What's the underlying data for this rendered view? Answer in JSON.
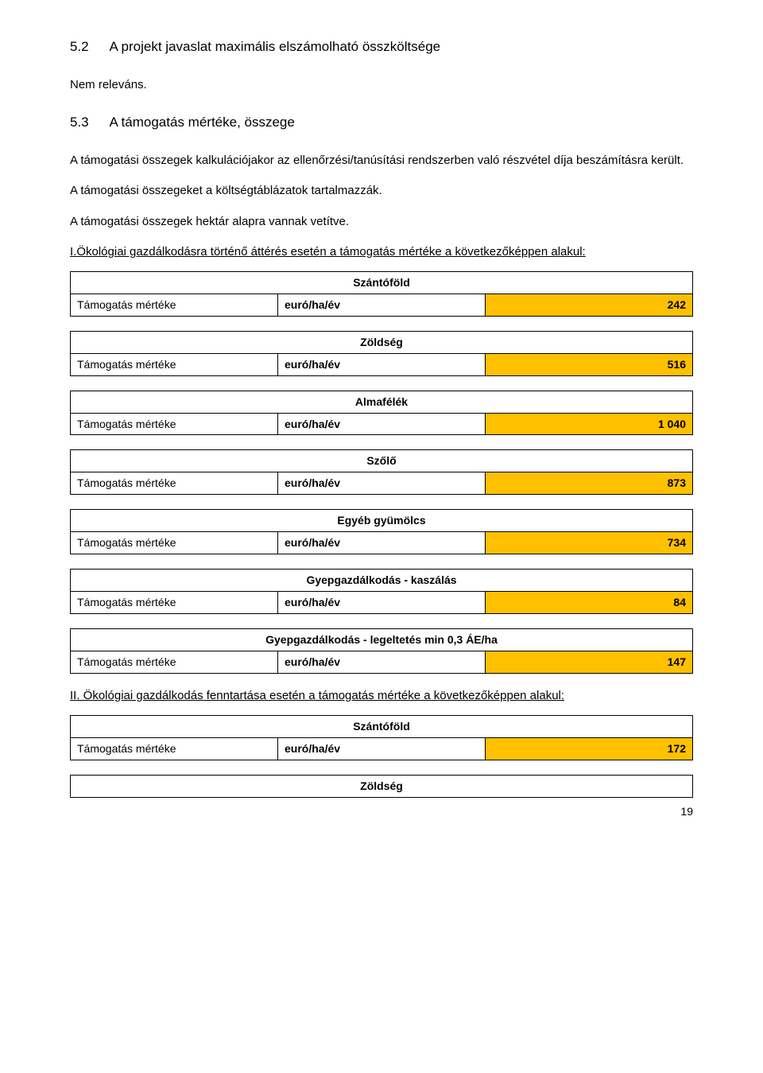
{
  "colors": {
    "value_bg": "#ffc000",
    "text": "#000000",
    "border": "#000000",
    "page_bg": "#ffffff"
  },
  "sec52": {
    "num": "5.2",
    "title": "A projekt javaslat maximális elszámolható összköltsége",
    "body": "Nem releváns."
  },
  "sec53": {
    "num": "5.3",
    "title": "A támogatás mértéke, összege",
    "p1": "A támogatási összegek kalkulációjakor az ellenőrzési/tanúsítási rendszerben való részvétel díja beszámításra került.",
    "p2": "A támogatási összegeket a költségtáblázatok tartalmazzák.",
    "p3": "A támogatási összegek hektár alapra vannak vetítve.",
    "group1_intro": "I.Ökológiai gazdálkodásra történő áttérés esetén a támogatás mértéke a következőképpen alakul:"
  },
  "row_label": "Támogatás mértéke",
  "unit_label": "euró/ha/év",
  "group1": [
    {
      "category": "Szántóföld",
      "value": "242"
    },
    {
      "category": "Zöldség",
      "value": "516"
    },
    {
      "category": "Almafélék",
      "value": "1 040"
    },
    {
      "category": "Szőlő",
      "value": "873"
    },
    {
      "category": "Egyéb gyümölcs",
      "value": "734"
    },
    {
      "category": "Gyepgazdálkodás - kaszálás",
      "value": "84"
    },
    {
      "category": "Gyepgazdálkodás - legeltetés min 0,3 ÁE/ha",
      "value": "147"
    }
  ],
  "group2_intro": "II. Ökológiai gazdálkodás fenntartása esetén a támogatás mértéke a következőképpen alakul:",
  "group2": [
    {
      "category": "Szántóföld",
      "value": "172"
    }
  ],
  "group2_tail_header": "Zöldség",
  "page_number": "19"
}
